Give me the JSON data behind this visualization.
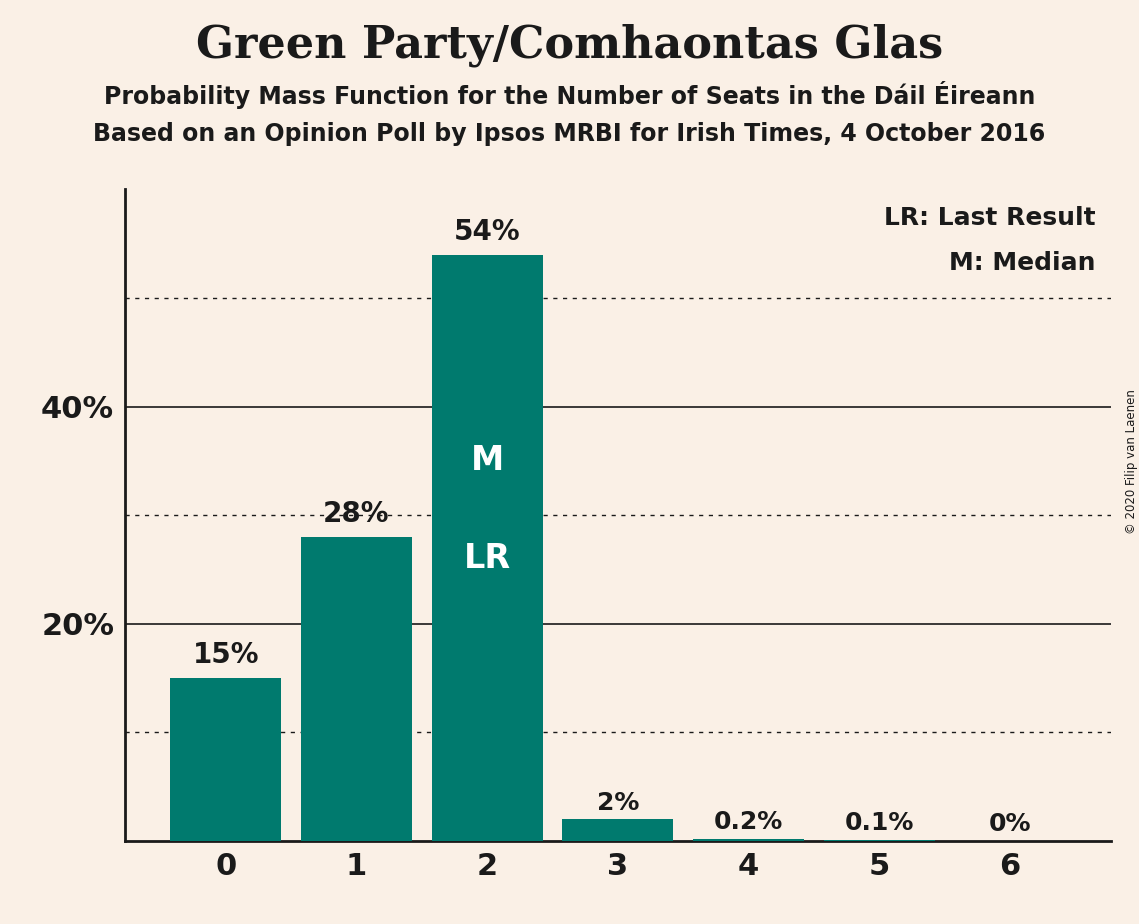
{
  "title": "Green Party/Comhaontas Glas",
  "subtitle1": "Probability Mass Function for the Number of Seats in the Dáil Éireann",
  "subtitle2": "Based on an Opinion Poll by Ipsos MRBI for Irish Times, 4 October 2016",
  "categories": [
    0,
    1,
    2,
    3,
    4,
    5,
    6
  ],
  "values": [
    15,
    28,
    54,
    2,
    0.2,
    0.1,
    0
  ],
  "bar_labels": [
    "15%",
    "28%",
    "54%",
    "2%",
    "0.2%",
    "0.1%",
    "0%"
  ],
  "bar_color": "#007A6E",
  "background_color": "#FAF0E6",
  "text_color": "#1a1a1a",
  "title_fontsize": 32,
  "subtitle_fontsize": 17,
  "ylim": [
    0,
    60
  ],
  "dotted_lines": [
    10,
    30,
    50
  ],
  "solid_lines": [
    20,
    40
  ],
  "solid_tick_labels": {
    "20": "20%",
    "40": "40%"
  },
  "median_bar": 2,
  "last_result_bar": 2,
  "legend_lr": "LR: Last Result",
  "legend_m": "M: Median",
  "copyright": "© 2020 Filip van Laenen",
  "bar_label_fontsize": 20,
  "inside_label_fontsize": 22,
  "ml_label_fontsize": 24,
  "legend_fontsize": 18,
  "xtick_fontsize": 22,
  "ytick_fontsize": 22
}
